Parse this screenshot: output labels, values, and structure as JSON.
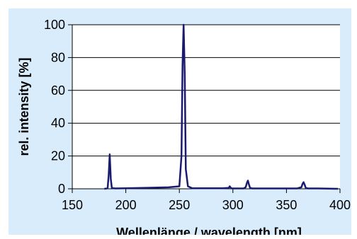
{
  "chart_data": {
    "type": "line",
    "title": "",
    "xlabel": "Wellenlänge / wavelength [nm]",
    "ylabel": "rel. intensity [%]",
    "xlim": [
      150,
      400
    ],
    "ylim": [
      0,
      100
    ],
    "x_ticks": [
      "150",
      "200",
      "250",
      "300",
      "350",
      "400"
    ],
    "y_ticks": [
      "0",
      "20",
      "40",
      "60",
      "80",
      "100"
    ],
    "grid": "horizontal",
    "line_color": "#1a1a6e",
    "background_color": "#d9ecfc",
    "plot_area_color": "#ffffff",
    "series": [
      {
        "x": [
          180,
          183,
          184,
          185,
          186,
          187,
          190,
          200,
          220,
          240,
          250,
          252,
          253,
          254,
          255,
          256,
          258,
          262,
          270,
          290,
          296,
          297,
          298,
          299,
          300,
          310,
          312,
          313,
          314,
          315,
          316,
          318,
          330,
          360,
          364,
          365,
          366,
          367,
          368,
          370,
          380,
          398
        ],
        "y": [
          0,
          0.3,
          8,
          21,
          6,
          0.5,
          0.2,
          0.3,
          0.6,
          0.9,
          1.5,
          20,
          75,
          100,
          70,
          12,
          1.5,
          0.4,
          0.3,
          0.3,
          0.5,
          1.5,
          0.6,
          0.2,
          0.2,
          0.2,
          1,
          3.5,
          5,
          2.5,
          0.6,
          0.2,
          0.2,
          0.2,
          1,
          3,
          4,
          2.5,
          0.6,
          0.2,
          0.2,
          0
        ]
      }
    ]
  }
}
